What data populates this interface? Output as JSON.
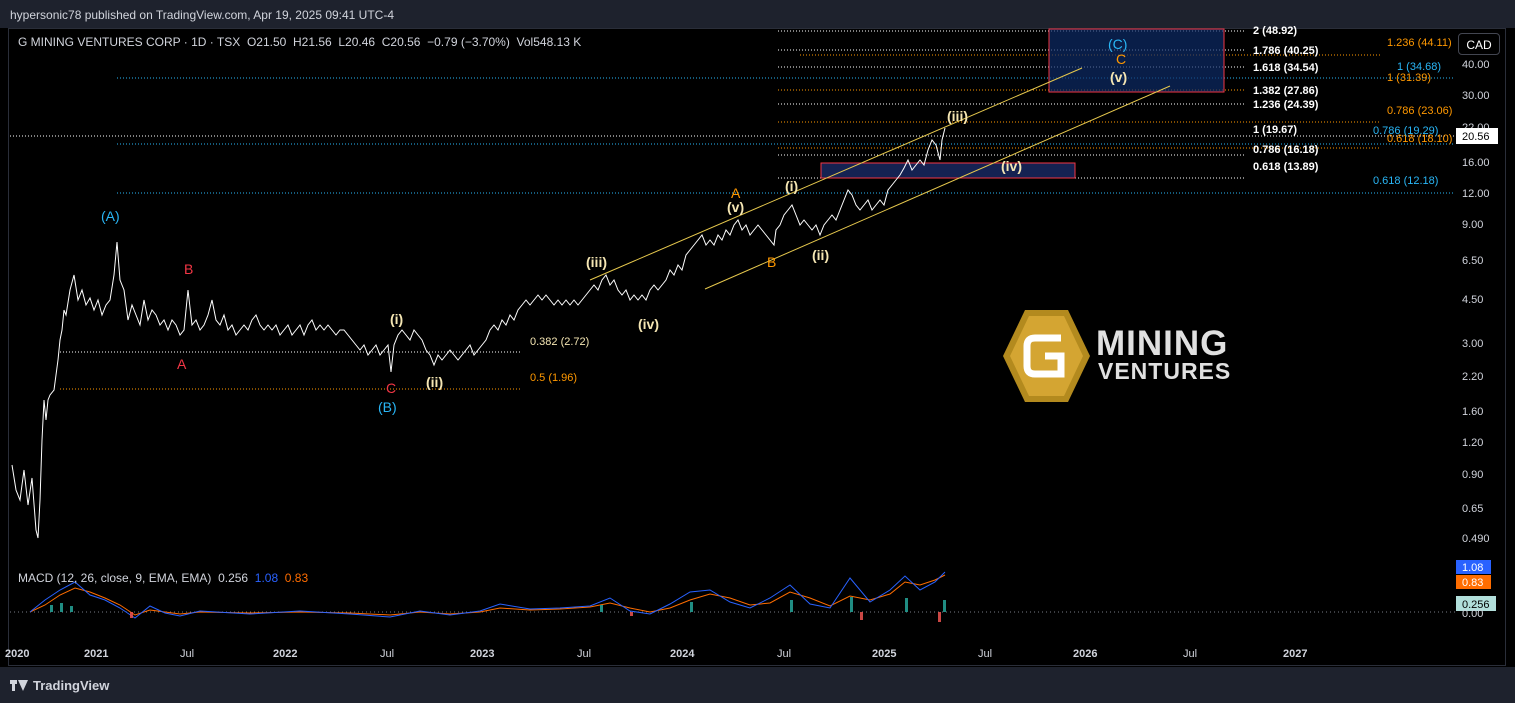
{
  "header": {
    "published": "hypersonic78 published on TradingView.com, Apr 19, 2025 09:41 UTC-4"
  },
  "symbol": {
    "name": "G MINING VENTURES CORP · 1D · TSX",
    "o_label": "O",
    "o": "21.50",
    "h_label": "H",
    "h": "21.56",
    "l_label": "L",
    "l": "20.46",
    "c_label": "C",
    "c": "20.56",
    "change": "−0.79 (−3.70%)",
    "vol_label": "Vol",
    "vol": "548.13 K"
  },
  "currency_button": "CAD",
  "price_axis": [
    "40.00",
    "30.00",
    "22.00",
    "16.00",
    "12.00",
    "9.00",
    "6.50",
    "4.50",
    "3.00",
    "2.20",
    "1.60",
    "1.20",
    "0.90",
    "0.65",
    "0.490"
  ],
  "last_price": "20.56",
  "time_axis": [
    "2020",
    "2021",
    "Jul",
    "2022",
    "Jul",
    "2023",
    "Jul",
    "2024",
    "Jul",
    "2025",
    "Jul",
    "2026",
    "Jul",
    "2027"
  ],
  "macd": {
    "title": "MACD (12, 26, close, 9, EMA, EMA)",
    "hist": "0.256",
    "macd": "1.08",
    "signal": "0.83",
    "axis_label": "0.00"
  },
  "waves": {
    "A_big": "(A)",
    "B_big": "(B)",
    "C_big": "(C)",
    "A_red": "A",
    "B_red": "B",
    "C_red": "C",
    "i1": "(i)",
    "ii1": "(ii)",
    "iii1": "(iii)",
    "iv1": "(iv)",
    "v1": "(v)",
    "A_or": "A",
    "B_or": "B",
    "C_or": "C",
    "i2": "(i)",
    "ii2": "(ii)",
    "iii2": "(iii)",
    "iv2": "(iv)",
    "v2": "(v)"
  },
  "fib_white": [
    "2 (48.92)",
    "1.786 (40.25)",
    "1.618 (34.54)",
    "1.382 (27.86)",
    "1.236 (24.39)",
    "1 (19.67)",
    "0.786 (16.18)",
    "0.618 (13.89)"
  ],
  "fib_orange": [
    "1.236 (44.11)",
    "1 (31.39)",
    "0.786 (23.06)",
    "0.618 (18.10)"
  ],
  "fib_blue": [
    "1 (34.68)",
    "0.786 (19.29)",
    "0.618 (12.18)"
  ],
  "fib_retrace": [
    "0.382 (2.72)",
    "0.5 (1.96)"
  ],
  "logo": {
    "line1": "MINING",
    "line2": "VENTURES"
  },
  "footer": {
    "brand": "TradingView"
  },
  "colors": {
    "price": "#ffffff",
    "macd_line": "#2962ff",
    "signal_line": "#ff6d00",
    "channel": "#e6c84d",
    "fib_white": "#ffffff",
    "fib_orange": "#ff9800",
    "fib_blue": "#29b6f6",
    "wave_red": "#f23645",
    "wave_cyan": "#29b6f6",
    "wave_yellow": "#f5e6b3"
  }
}
